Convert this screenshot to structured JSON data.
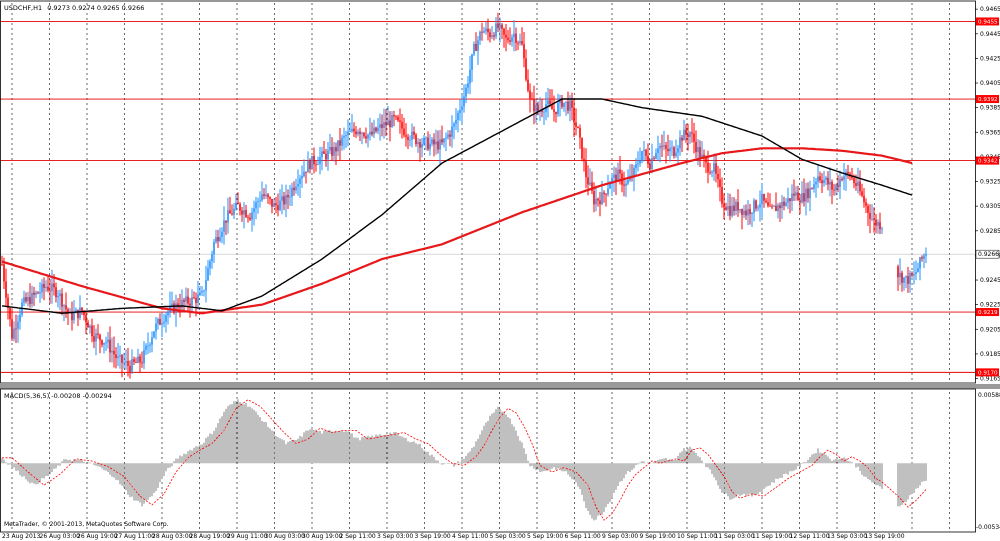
{
  "header": {
    "symbol": "USDCHF,H1",
    "ohlc": "0.9273 0.9274 0.9265 0.9266"
  },
  "macd_header": "MACD(5,36,5) -0.00208 -0.00294",
  "copyright": "MetaTrader, © 2001-2013, MetaQuotes Software Corp.",
  "price_axis": {
    "ticks": [
      "0.9465",
      "0.9445",
      "0.9425",
      "0.9405",
      "0.9385",
      "0.9365",
      "0.9345",
      "0.9325",
      "0.9305",
      "0.9285",
      "0.9265",
      "0.9245",
      "0.9225",
      "0.9205",
      "0.9185",
      "0.9165"
    ],
    "hlines": [
      {
        "label": "0.9455",
        "value": 0.9455
      },
      {
        "label": "0.9392",
        "value": 0.9392
      },
      {
        "label": "0.9342",
        "value": 0.9342
      },
      {
        "label": "0.9219",
        "value": 0.9219
      },
      {
        "label": "0.9170",
        "value": 0.917
      }
    ],
    "current": {
      "label": "0.9266",
      "value": 0.9266
    }
  },
  "macd_axis": {
    "top_label": "0.00588",
    "bottom_label": "-0.00534"
  },
  "time_axis": [
    "23 Aug 2013",
    "26 Aug 03:00",
    "26 Aug 19:00",
    "27 Aug 11:00",
    "28 Aug 03:00",
    "28 Aug 19:00",
    "29 Aug 11:00",
    "30 Aug 03:00",
    "30 Aug 19:00",
    "2 Sep 11:00",
    "3 Sep 03:00",
    "3 Sep 19:00",
    "4 Sep 11:00",
    "5 Sep 03:00",
    "5 Sep 19:00",
    "6 Sep 11:00",
    "9 Sep 03:00",
    "9 Sep 19:00",
    "10 Sep 11:00",
    "11 Sep 03:00",
    "11 Sep 19:00",
    "12 Sep 11:00",
    "13 Sep 03:00",
    "13 Sep 19:00"
  ],
  "colors": {
    "background": "#ffffff",
    "bull": "#1e90ff",
    "bear": "#ff0000",
    "ma_slow": "#e8181a",
    "ma_fast": "#000000",
    "hline": "#e60000",
    "label_bg": "#ff0000",
    "macd_hist": "#808080",
    "macd_signal": "#ff0000",
    "grid": "#000000"
  },
  "chart_data": {
    "type": "candlestick",
    "title": "USDCHF,H1",
    "ylim": [
      0.9163,
      0.947
    ],
    "price_anchors": [
      [
        0,
        0.9258
      ],
      [
        5,
        0.92
      ],
      [
        10,
        0.9225
      ],
      [
        16,
        0.9232
      ],
      [
        22,
        0.924
      ],
      [
        28,
        0.9235
      ],
      [
        34,
        0.9215
      ],
      [
        40,
        0.922
      ],
      [
        46,
        0.92
      ],
      [
        52,
        0.9195
      ],
      [
        58,
        0.918
      ],
      [
        64,
        0.9175
      ],
      [
        70,
        0.918
      ],
      [
        76,
        0.9205
      ],
      [
        82,
        0.9218
      ],
      [
        88,
        0.9225
      ],
      [
        94,
        0.9228
      ],
      [
        100,
        0.9232
      ],
      [
        106,
        0.9275
      ],
      [
        112,
        0.9295
      ],
      [
        118,
        0.9305
      ],
      [
        124,
        0.9298
      ],
      [
        130,
        0.9315
      ],
      [
        136,
        0.9305
      ],
      [
        142,
        0.931
      ],
      [
        148,
        0.9328
      ],
      [
        154,
        0.934
      ],
      [
        160,
        0.9345
      ],
      [
        166,
        0.935
      ],
      [
        172,
        0.9362
      ],
      [
        178,
        0.9368
      ],
      [
        184,
        0.9362
      ],
      [
        190,
        0.937
      ],
      [
        196,
        0.9375
      ],
      [
        202,
        0.9365
      ],
      [
        208,
        0.9358
      ],
      [
        214,
        0.9355
      ],
      [
        220,
        0.9355
      ],
      [
        226,
        0.937
      ],
      [
        232,
        0.94
      ],
      [
        236,
        0.9432
      ],
      [
        240,
        0.9448
      ],
      [
        244,
        0.9445
      ],
      [
        248,
        0.945
      ],
      [
        252,
        0.944
      ],
      [
        256,
        0.9445
      ],
      [
        260,
        0.9435
      ],
      [
        264,
        0.939
      ],
      [
        268,
        0.9382
      ],
      [
        272,
        0.9388
      ],
      [
        276,
        0.9382
      ],
      [
        280,
        0.939
      ],
      [
        284,
        0.9386
      ],
      [
        288,
        0.9365
      ],
      [
        292,
        0.933
      ],
      [
        296,
        0.931
      ],
      [
        300,
        0.9312
      ],
      [
        304,
        0.9325
      ],
      [
        308,
        0.933
      ],
      [
        312,
        0.9322
      ],
      [
        316,
        0.9332
      ],
      [
        320,
        0.935
      ],
      [
        324,
        0.934
      ],
      [
        328,
        0.9355
      ],
      [
        332,
        0.935
      ],
      [
        336,
        0.935
      ],
      [
        340,
        0.9362
      ],
      [
        344,
        0.9365
      ],
      [
        348,
        0.935
      ],
      [
        352,
        0.9338
      ],
      [
        356,
        0.9335
      ],
      [
        360,
        0.931
      ],
      [
        364,
        0.9302
      ],
      [
        368,
        0.9305
      ],
      [
        372,
        0.93
      ],
      [
        376,
        0.9305
      ],
      [
        380,
        0.931
      ],
      [
        384,
        0.93
      ],
      [
        388,
        0.9305
      ],
      [
        392,
        0.9308
      ],
      [
        396,
        0.9315
      ],
      [
        400,
        0.9312
      ],
      [
        404,
        0.9318
      ],
      [
        408,
        0.933
      ],
      [
        412,
        0.9325
      ],
      [
        416,
        0.9318
      ],
      [
        420,
        0.933
      ],
      [
        424,
        0.933
      ],
      [
        428,
        0.932
      ],
      [
        432,
        0.9305
      ],
      [
        436,
        0.9292
      ],
      [
        440,
        0.929
      ],
      [
        448,
        0.925
      ],
      [
        452,
        0.9245
      ],
      [
        456,
        0.9248
      ],
      [
        460,
        0.9262
      ],
      [
        462,
        0.9268
      ]
    ],
    "gap": [
      440,
      448
    ],
    "ma_slow": [
      [
        0,
        0.926
      ],
      [
        40,
        0.924
      ],
      [
        80,
        0.9222
      ],
      [
        100,
        0.9218
      ],
      [
        130,
        0.9225
      ],
      [
        160,
        0.9242
      ],
      [
        190,
        0.9262
      ],
      [
        220,
        0.9274
      ],
      [
        260,
        0.93
      ],
      [
        300,
        0.9322
      ],
      [
        340,
        0.934
      ],
      [
        360,
        0.9348
      ],
      [
        380,
        0.9352
      ],
      [
        400,
        0.9352
      ],
      [
        420,
        0.935
      ],
      [
        440,
        0.9346
      ],
      [
        455,
        0.934
      ]
    ],
    "ma_fast": [
      [
        0,
        0.9224
      ],
      [
        30,
        0.9218
      ],
      [
        60,
        0.9222
      ],
      [
        90,
        0.9224
      ],
      [
        110,
        0.922
      ],
      [
        130,
        0.9232
      ],
      [
        160,
        0.9262
      ],
      [
        190,
        0.9298
      ],
      [
        220,
        0.934
      ],
      [
        250,
        0.9366
      ],
      [
        280,
        0.9392
      ],
      [
        300,
        0.9392
      ],
      [
        320,
        0.9385
      ],
      [
        350,
        0.9378
      ],
      [
        380,
        0.9362
      ],
      [
        400,
        0.9343
      ],
      [
        420,
        0.9332
      ],
      [
        440,
        0.9322
      ],
      [
        455,
        0.9314
      ]
    ],
    "macd_ylim": [
      -0.006,
      0.0065
    ],
    "macd_hist": [
      [
        0,
        0.0005
      ],
      [
        8,
        -0.0008
      ],
      [
        16,
        -0.002
      ],
      [
        24,
        -0.001
      ],
      [
        32,
        0.0004
      ],
      [
        40,
        0.0002
      ],
      [
        48,
        -0.0003
      ],
      [
        56,
        -0.0012
      ],
      [
        64,
        -0.003
      ],
      [
        70,
        -0.0038
      ],
      [
        76,
        -0.0028
      ],
      [
        82,
        -0.0008
      ],
      [
        88,
        0.0005
      ],
      [
        94,
        0.0012
      ],
      [
        100,
        0.0018
      ],
      [
        106,
        0.003
      ],
      [
        112,
        0.005
      ],
      [
        118,
        0.0058
      ],
      [
        124,
        0.0052
      ],
      [
        130,
        0.004
      ],
      [
        136,
        0.0028
      ],
      [
        142,
        0.0018
      ],
      [
        148,
        0.0022
      ],
      [
        154,
        0.0032
      ],
      [
        160,
        0.0028
      ],
      [
        166,
        0.003
      ],
      [
        172,
        0.003
      ],
      [
        178,
        0.0022
      ],
      [
        184,
        0.0024
      ],
      [
        190,
        0.0026
      ],
      [
        196,
        0.0028
      ],
      [
        202,
        0.0022
      ],
      [
        208,
        0.0018
      ],
      [
        214,
        0.0008
      ],
      [
        220,
        0.0
      ],
      [
        226,
        -0.0002
      ],
      [
        232,
        0.0006
      ],
      [
        236,
        0.0016
      ],
      [
        240,
        0.003
      ],
      [
        244,
        0.0042
      ],
      [
        248,
        0.005
      ],
      [
        252,
        0.0046
      ],
      [
        256,
        0.0034
      ],
      [
        260,
        0.0018
      ],
      [
        264,
        -0.0002
      ],
      [
        270,
        -0.0008
      ],
      [
        276,
        -0.0004
      ],
      [
        282,
        -0.0008
      ],
      [
        288,
        -0.002
      ],
      [
        292,
        -0.004
      ],
      [
        296,
        -0.0052
      ],
      [
        300,
        -0.0046
      ],
      [
        304,
        -0.0034
      ],
      [
        308,
        -0.002
      ],
      [
        312,
        -0.001
      ],
      [
        316,
        -0.0004
      ],
      [
        320,
        0.0002
      ],
      [
        324,
        0.0
      ],
      [
        328,
        0.0002
      ],
      [
        332,
        0.0004
      ],
      [
        336,
        0.0002
      ],
      [
        340,
        0.0012
      ],
      [
        344,
        0.0014
      ],
      [
        348,
        0.0008
      ],
      [
        352,
        -0.0002
      ],
      [
        356,
        -0.0012
      ],
      [
        360,
        -0.0026
      ],
      [
        364,
        -0.0032
      ],
      [
        370,
        -0.0028
      ],
      [
        376,
        -0.003
      ],
      [
        382,
        -0.0022
      ],
      [
        388,
        -0.0014
      ],
      [
        394,
        -0.0008
      ],
      [
        400,
        -0.0002
      ],
      [
        404,
        0.0006
      ],
      [
        408,
        0.0012
      ],
      [
        412,
        0.0008
      ],
      [
        416,
        0.0002
      ],
      [
        420,
        0.0006
      ],
      [
        424,
        0.0002
      ],
      [
        428,
        -0.0004
      ],
      [
        432,
        -0.0014
      ],
      [
        436,
        -0.0018
      ],
      [
        440,
        -0.0024
      ],
      [
        448,
        -0.004
      ],
      [
        452,
        -0.0034
      ],
      [
        456,
        -0.0026
      ],
      [
        460,
        -0.0018
      ],
      [
        462,
        -0.0016
      ]
    ],
    "macd_signal_lag": 5
  }
}
